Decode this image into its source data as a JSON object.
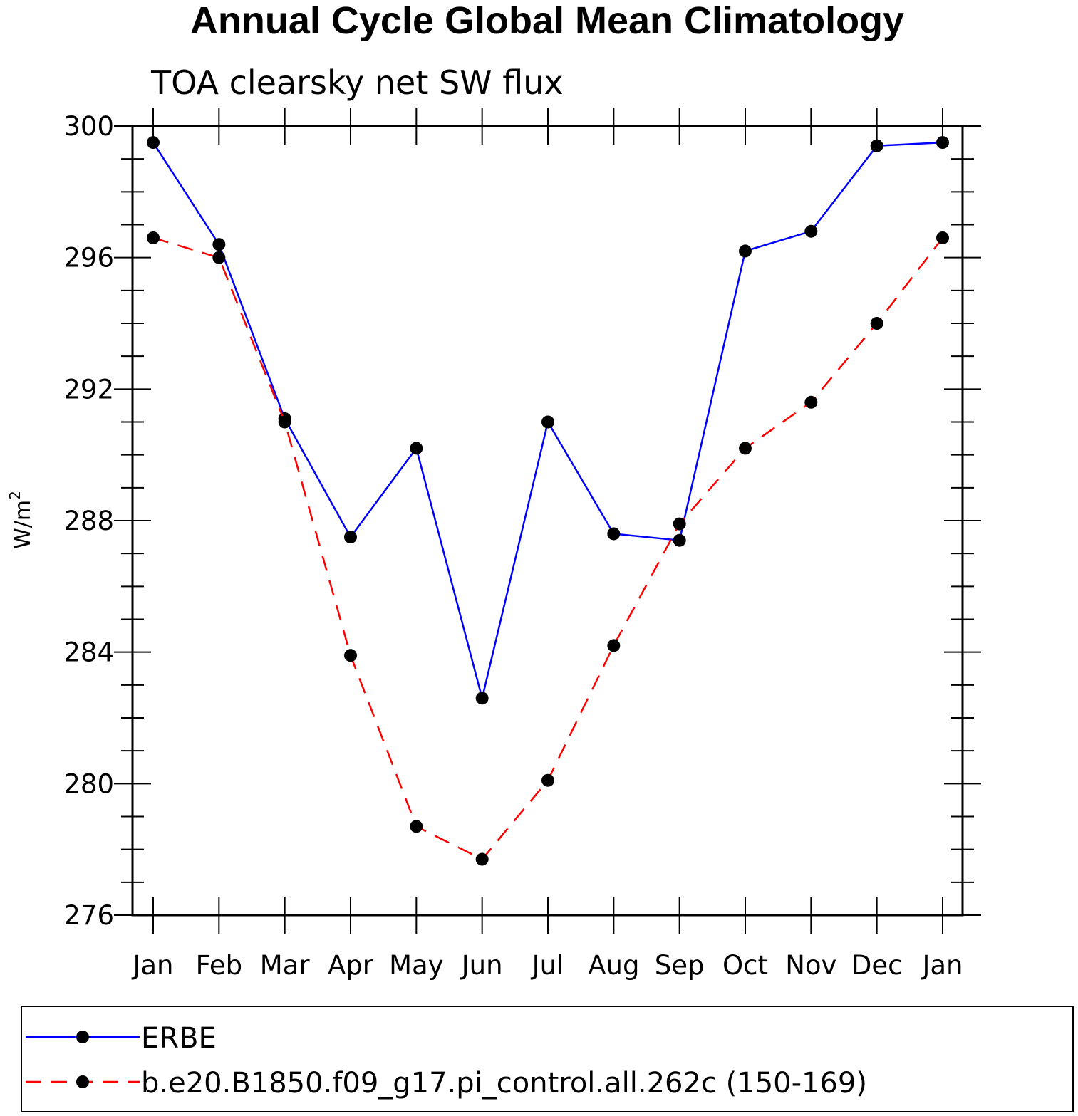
{
  "chart_data": {
    "type": "line",
    "title": "Annual Cycle Global Mean Climatology",
    "subtitle": "TOA clearsky net SW flux",
    "ylabel": "W/m",
    "ylabel_superscript": "2",
    "ylim": [
      276,
      300
    ],
    "yticks": [
      276,
      280,
      284,
      288,
      292,
      296,
      300
    ],
    "categories": [
      "Jan",
      "Feb",
      "Mar",
      "Apr",
      "May",
      "Jun",
      "Jul",
      "Aug",
      "Sep",
      "Oct",
      "Nov",
      "Dec",
      "Jan"
    ],
    "grid": false,
    "legend_position": "bottom",
    "series": [
      {
        "name": "ERBE",
        "color": "#0000ff",
        "dash": "solid",
        "values": [
          299.5,
          296.4,
          291.1,
          287.5,
          290.2,
          282.6,
          291.0,
          287.6,
          287.4,
          296.2,
          296.8,
          299.4,
          299.5
        ]
      },
      {
        "name": "b.e20.B1850.f09_g17.pi_control.all.262c (150-169)",
        "color": "#ff0000",
        "dash": "dashed",
        "values": [
          296.6,
          296.0,
          291.0,
          283.9,
          278.7,
          277.7,
          280.1,
          284.2,
          287.9,
          290.2,
          291.6,
          294.0,
          296.6
        ]
      }
    ]
  }
}
